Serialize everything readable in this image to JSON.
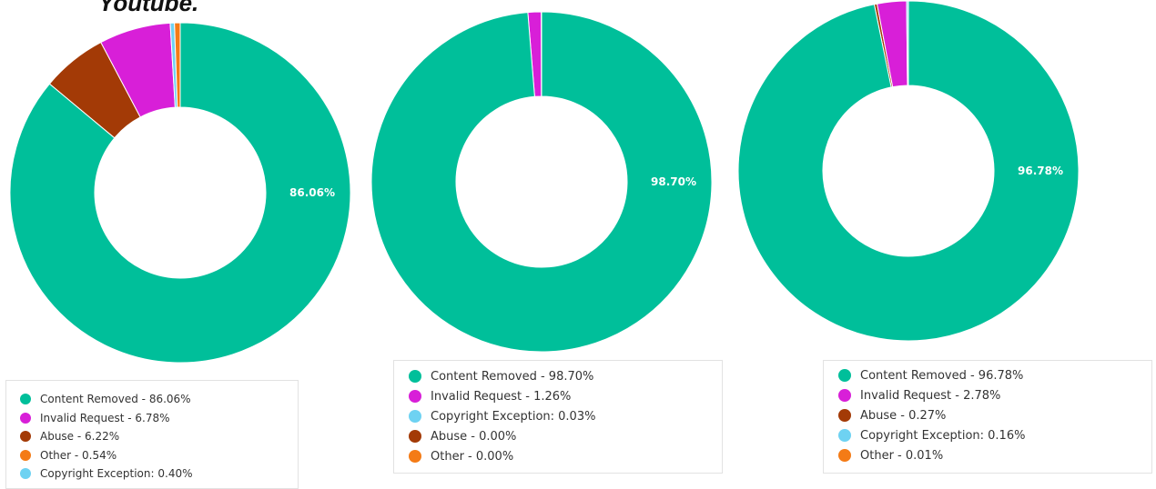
{
  "page_title": "Youtube.",
  "colors": {
    "content_removed": "#00BF9A",
    "invalid_request": "#D81FD8",
    "abuse": "#A33A06",
    "other": "#F47B16",
    "copyright_exception": "#6ED2F2"
  },
  "chart_data": [
    {
      "type": "pie",
      "variant": "donut",
      "center_label": "86.06%",
      "slices": [
        {
          "label": "Content Removed",
          "value": 86.06,
          "color": "#00BF9A"
        },
        {
          "label": "Abuse",
          "value": 6.22,
          "color": "#A33A06"
        },
        {
          "label": "Invalid Request",
          "value": 6.78,
          "color": "#D81FD8"
        },
        {
          "label": "Copyright Exception",
          "value": 0.4,
          "color": "#6ED2F2"
        },
        {
          "label": "Other",
          "value": 0.54,
          "color": "#F47B16"
        }
      ],
      "legend": [
        {
          "text": "Content Removed - 86.06%",
          "color": "#00BF9A"
        },
        {
          "text": "Invalid Request - 6.78%",
          "color": "#D81FD8"
        },
        {
          "text": "Abuse - 6.22%",
          "color": "#A33A06"
        },
        {
          "text": "Other - 0.54%",
          "color": "#F47B16"
        },
        {
          "text": "Copyright Exception: 0.40%",
          "color": "#6ED2F2"
        }
      ]
    },
    {
      "type": "pie",
      "variant": "donut",
      "center_label": "98.70%",
      "slices": [
        {
          "label": "Content Removed",
          "value": 98.7,
          "color": "#00BF9A"
        },
        {
          "label": "Invalid Request",
          "value": 1.26,
          "color": "#D81FD8"
        },
        {
          "label": "Copyright Exception",
          "value": 0.03,
          "color": "#6ED2F2"
        },
        {
          "label": "Abuse",
          "value": 0.0,
          "color": "#A33A06"
        },
        {
          "label": "Other",
          "value": 0.0,
          "color": "#F47B16"
        }
      ],
      "legend": [
        {
          "text": "Content Removed - 98.70%",
          "color": "#00BF9A"
        },
        {
          "text": "Invalid Request - 1.26%",
          "color": "#D81FD8"
        },
        {
          "text": "Copyright Exception: 0.03%",
          "color": "#6ED2F2"
        },
        {
          "text": "Abuse - 0.00%",
          "color": "#A33A06"
        },
        {
          "text": "Other - 0.00%",
          "color": "#F47B16"
        }
      ]
    },
    {
      "type": "pie",
      "variant": "donut",
      "center_label": "96.78%",
      "slices": [
        {
          "label": "Content Removed",
          "value": 96.78,
          "color": "#00BF9A"
        },
        {
          "label": "Abuse",
          "value": 0.27,
          "color": "#A33A06"
        },
        {
          "label": "Invalid Request",
          "value": 2.78,
          "color": "#D81FD8"
        },
        {
          "label": "Copyright Exception",
          "value": 0.16,
          "color": "#6ED2F2"
        },
        {
          "label": "Other",
          "value": 0.01,
          "color": "#F47B16"
        }
      ],
      "legend": [
        {
          "text": "Content Removed - 96.78%",
          "color": "#00BF9A"
        },
        {
          "text": "Invalid Request - 2.78%",
          "color": "#D81FD8"
        },
        {
          "text": "Abuse - 0.27%",
          "color": "#A33A06"
        },
        {
          "text": "Copyright Exception: 0.16%",
          "color": "#6ED2F2"
        },
        {
          "text": "Other - 0.01%",
          "color": "#F47B16"
        }
      ]
    }
  ]
}
